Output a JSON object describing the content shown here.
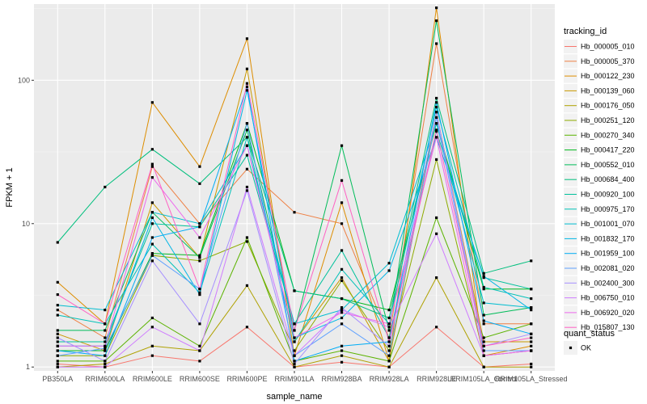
{
  "chart_data": {
    "type": "line",
    "xlabel": "sample_name",
    "ylabel": "FPKM + 1",
    "yscale": "log10",
    "ylim": [
      0.94,
      340
    ],
    "y_ticks": [
      1,
      10,
      100
    ],
    "y_tick_labels": [
      "1",
      "10",
      "100"
    ],
    "grid": true,
    "legend_placement": "right",
    "categories": [
      "PB350LA",
      "RRIM600LA",
      "RRIM600LE",
      "RRIM600SE",
      "RRIM600PE",
      "RRIM901LA",
      "RRIM928BA",
      "RRIM928LA",
      "RRIM928LE",
      "RRIM105LA_Control",
      "RRIM105LA_Stressed"
    ],
    "legend": {
      "color_title": "tracking_id",
      "shape_title": "quant_status",
      "shape_entries": [
        "OK"
      ]
    },
    "series": [
      {
        "name": "Hb_000005_010",
        "color": "#F8766D",
        "values": [
          1.05,
          1.0,
          1.2,
          1.1,
          1.9,
          1.0,
          1.08,
          1.0,
          1.9,
          1.0,
          1.05
        ]
      },
      {
        "name": "Hb_000005_370",
        "color": "#EE8044",
        "values": [
          2.5,
          1.6,
          25,
          10,
          24,
          12,
          10,
          1.6,
          180,
          2.0,
          2.0
        ]
      },
      {
        "name": "Hb_000122_230",
        "color": "#DD8D00",
        "values": [
          3.9,
          2.0,
          70,
          25,
          195,
          1.2,
          14,
          1.1,
          320,
          1.2,
          1.4
        ]
      },
      {
        "name": "Hb_000139_060",
        "color": "#C99800",
        "values": [
          1.7,
          1.3,
          14,
          5.8,
          120,
          1.5,
          4.2,
          1.1,
          60,
          1.5,
          1.5
        ]
      },
      {
        "name": "Hb_000176_050",
        "color": "#AFA100",
        "values": [
          1.0,
          1.05,
          1.4,
          1.3,
          3.7,
          1.0,
          1.2,
          1.0,
          4.2,
          1.0,
          1.0
        ]
      },
      {
        "name": "Hb_000251_120",
        "color": "#8EAB00",
        "values": [
          1.2,
          1.2,
          6.0,
          5.5,
          7.5,
          1.3,
          4.0,
          1.3,
          28,
          1.2,
          1.3
        ]
      },
      {
        "name": "Hb_000270_340",
        "color": "#5BB300",
        "values": [
          1.1,
          1.1,
          2.2,
          1.4,
          8.0,
          1.1,
          1.3,
          1.1,
          11,
          1.6,
          2.0
        ]
      },
      {
        "name": "Hb_000417_220",
        "color": "#00B81F",
        "values": [
          1.3,
          1.3,
          6.2,
          6.0,
          50,
          3.4,
          3.0,
          2.5,
          50,
          3.5,
          3.5
        ]
      },
      {
        "name": "Hb_000552_010",
        "color": "#00BC59",
        "values": [
          1.8,
          1.8,
          12,
          5.8,
          45,
          1.8,
          35,
          1.8,
          260,
          2.3,
          2.6
        ]
      },
      {
        "name": "Hb_000684_400",
        "color": "#00BF7D",
        "values": [
          7.4,
          18,
          33,
          19,
          40,
          3.4,
          3.0,
          2.2,
          75,
          4.5,
          5.5
        ]
      },
      {
        "name": "Hb_000920_100",
        "color": "#00C19C",
        "values": [
          1.5,
          1.5,
          10,
          9.5,
          30,
          2.0,
          6.5,
          1.6,
          44,
          4.2,
          3.5
        ]
      },
      {
        "name": "Hb_000975_170",
        "color": "#00C1B8",
        "values": [
          2.3,
          2.0,
          7.2,
          3.3,
          40,
          1.5,
          4.8,
          2.0,
          65,
          3.6,
          3.0
        ]
      },
      {
        "name": "Hb_001001_070",
        "color": "#00BDD0",
        "values": [
          2.7,
          2.5,
          12,
          10,
          35,
          2.0,
          2.5,
          5.3,
          50,
          2.8,
          2.6
        ]
      },
      {
        "name": "Hb_001832_170",
        "color": "#00B6E5",
        "values": [
          1.4,
          1.4,
          11,
          3.2,
          85,
          1.6,
          2.2,
          4.7,
          40,
          4.3,
          2.5
        ]
      },
      {
        "name": "Hb_001959_100",
        "color": "#00ACF5",
        "values": [
          1.3,
          1.2,
          8.0,
          9.5,
          90,
          1.1,
          1.4,
          1.5,
          70,
          2.1,
          1.7
        ]
      },
      {
        "name": "Hb_002081_020",
        "color": "#5EA0FF",
        "values": [
          1.2,
          1.35,
          6.0,
          3.5,
          50,
          1.2,
          2.0,
          1.2,
          55,
          1.3,
          1.3
        ]
      },
      {
        "name": "Hb_002400_300",
        "color": "#A68FFF",
        "values": [
          1.6,
          1.1,
          5.5,
          2.0,
          17,
          1.05,
          2.6,
          1.4,
          60,
          1.4,
          1.7
        ]
      },
      {
        "name": "Hb_006750_010",
        "color": "#CF7CFF",
        "values": [
          1.0,
          1.0,
          1.9,
          1.3,
          18,
          1.2,
          2.5,
          1.9,
          8.5,
          1.2,
          1.3
        ]
      },
      {
        "name": "Hb_006920_020",
        "color": "#ED68ED",
        "values": [
          1.4,
          1.4,
          21,
          8.0,
          35,
          1.6,
          2.4,
          2.0,
          40,
          1.2,
          1.3
        ]
      },
      {
        "name": "Hb_015807_130",
        "color": "#FF61C3",
        "values": [
          3.2,
          2.0,
          26,
          3.5,
          95,
          1.8,
          20,
          1.5,
          45,
          1.4,
          1.6
        ]
      }
    ]
  }
}
